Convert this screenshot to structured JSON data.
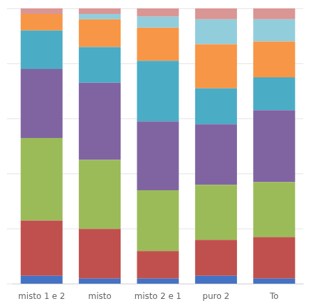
{
  "chart_data": {
    "type": "bar",
    "stacked": true,
    "categories": [
      "misto 1 e 2",
      "misto",
      "misto 2 e 1",
      "puro 2",
      "To"
    ],
    "series": [
      {
        "color": "#4472C4",
        "values": [
          0.03,
          0.02,
          0.02,
          0.03,
          0.02
        ]
      },
      {
        "color": "#C0504D",
        "values": [
          0.2,
          0.18,
          0.1,
          0.13,
          0.15
        ]
      },
      {
        "color": "#9BBB59",
        "values": [
          0.3,
          0.25,
          0.22,
          0.2,
          0.2
        ]
      },
      {
        "color": "#8064A2",
        "values": [
          0.25,
          0.28,
          0.25,
          0.22,
          0.26
        ]
      },
      {
        "color": "#4BACC6",
        "values": [
          0.14,
          0.13,
          0.22,
          0.13,
          0.12
        ]
      },
      {
        "color": "#F79646",
        "values": [
          0.06,
          0.1,
          0.12,
          0.16,
          0.13
        ]
      },
      {
        "color": "#92CDDC",
        "values": [
          0.0,
          0.02,
          0.04,
          0.09,
          0.08
        ]
      },
      {
        "color": "#D99694",
        "values": [
          0.02,
          0.02,
          0.03,
          0.04,
          0.04
        ]
      }
    ],
    "ylim": [
      0,
      1.0
    ],
    "yticks": [
      0,
      0.2,
      0.4,
      0.6,
      0.8,
      1.0
    ],
    "grid": true,
    "tick_labels": "x"
  }
}
